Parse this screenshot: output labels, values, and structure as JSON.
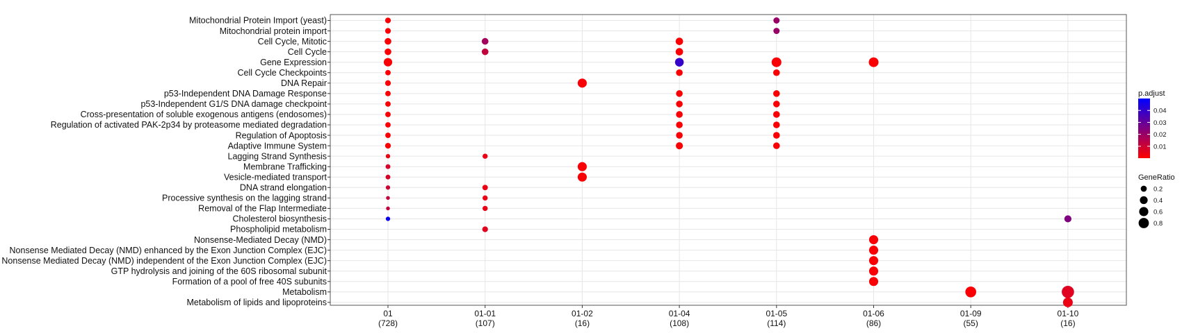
{
  "chart_data": {
    "type": "scatter",
    "x": [
      {
        "name": "01",
        "count": "(728)"
      },
      {
        "name": "01-01",
        "count": "(107)"
      },
      {
        "name": "01-02",
        "count": "(16)"
      },
      {
        "name": "01-04",
        "count": "(108)"
      },
      {
        "name": "01-05",
        "count": "(114)"
      },
      {
        "name": "01-06",
        "count": "(86)"
      },
      {
        "name": "01-09",
        "count": "(55)"
      },
      {
        "name": "01-10",
        "count": "(16)"
      }
    ],
    "y": [
      "Mitochondrial Protein Import (yeast)",
      "Mitochondrial protein import",
      "Cell Cycle, Mitotic",
      "Cell Cycle",
      "Gene Expression",
      "Cell Cycle Checkpoints",
      "DNA Repair",
      "p53-Independent DNA Damage Response",
      "p53-Independent G1/S DNA damage checkpoint",
      "Cross-presentation of soluble exogenous antigens (endosomes)",
      "Regulation of activated PAK-2p34 by proteasome mediated degradation",
      "Regulation of Apoptosis",
      "Adaptive Immune System",
      "Lagging Strand Synthesis",
      "Membrane Trafficking",
      "Vesicle-mediated transport",
      "DNA strand elongation",
      "Processive synthesis on the lagging strand",
      "Removal of the Flap Intermediate",
      "Cholesterol biosynthesis",
      "Phospholipid metabolism",
      "Nonsense-Mediated Decay (NMD)",
      "Nonsense Mediated Decay (NMD) enhanced by the Exon Junction Complex (EJC)",
      "Nonsense Mediated Decay (NMD) independent of the Exon Junction Complex (EJC)",
      "GTP hydrolysis and joining of the 60S ribosomal subunit",
      "Formation of a pool of free 40S subunits",
      "Metabolism",
      "Metabolism of lipids and lipoproteins"
    ],
    "points": [
      {
        "x": 0,
        "y": 0,
        "gene_ratio": 0.06,
        "p_adjust": 0.001
      },
      {
        "x": 0,
        "y": 1,
        "gene_ratio": 0.06,
        "p_adjust": 0.001
      },
      {
        "x": 0,
        "y": 2,
        "gene_ratio": 0.1,
        "p_adjust": 0.001
      },
      {
        "x": 0,
        "y": 3,
        "gene_ratio": 0.1,
        "p_adjust": 0.001
      },
      {
        "x": 0,
        "y": 4,
        "gene_ratio": 0.2,
        "p_adjust": 0.001
      },
      {
        "x": 0,
        "y": 5,
        "gene_ratio": 0.05,
        "p_adjust": 0.001
      },
      {
        "x": 0,
        "y": 6,
        "gene_ratio": 0.06,
        "p_adjust": 0.001
      },
      {
        "x": 0,
        "y": 7,
        "gene_ratio": 0.05,
        "p_adjust": 0.001
      },
      {
        "x": 0,
        "y": 8,
        "gene_ratio": 0.05,
        "p_adjust": 0.001
      },
      {
        "x": 0,
        "y": 9,
        "gene_ratio": 0.05,
        "p_adjust": 0.001
      },
      {
        "x": 0,
        "y": 10,
        "gene_ratio": 0.05,
        "p_adjust": 0.001
      },
      {
        "x": 0,
        "y": 11,
        "gene_ratio": 0.05,
        "p_adjust": 0.001
      },
      {
        "x": 0,
        "y": 12,
        "gene_ratio": 0.06,
        "p_adjust": 0.001
      },
      {
        "x": 0,
        "y": 13,
        "gene_ratio": 0.02,
        "p_adjust": 0.004
      },
      {
        "x": 0,
        "y": 14,
        "gene_ratio": 0.03,
        "p_adjust": 0.008
      },
      {
        "x": 0,
        "y": 15,
        "gene_ratio": 0.03,
        "p_adjust": 0.008
      },
      {
        "x": 0,
        "y": 16,
        "gene_ratio": 0.02,
        "p_adjust": 0.01
      },
      {
        "x": 0,
        "y": 17,
        "gene_ratio": 0.01,
        "p_adjust": 0.012
      },
      {
        "x": 0,
        "y": 18,
        "gene_ratio": 0.01,
        "p_adjust": 0.012
      },
      {
        "x": 0,
        "y": 19,
        "gene_ratio": 0.02,
        "p_adjust": 0.048
      },
      {
        "x": 1,
        "y": 2,
        "gene_ratio": 0.1,
        "p_adjust": 0.018
      },
      {
        "x": 1,
        "y": 3,
        "gene_ratio": 0.1,
        "p_adjust": 0.012
      },
      {
        "x": 1,
        "y": 13,
        "gene_ratio": 0.04,
        "p_adjust": 0.004
      },
      {
        "x": 1,
        "y": 16,
        "gene_ratio": 0.05,
        "p_adjust": 0.004
      },
      {
        "x": 1,
        "y": 17,
        "gene_ratio": 0.04,
        "p_adjust": 0.004
      },
      {
        "x": 1,
        "y": 18,
        "gene_ratio": 0.04,
        "p_adjust": 0.004
      },
      {
        "x": 1,
        "y": 20,
        "gene_ratio": 0.06,
        "p_adjust": 0.006
      },
      {
        "x": 2,
        "y": 6,
        "gene_ratio": 0.25,
        "p_adjust": 0.001
      },
      {
        "x": 2,
        "y": 14,
        "gene_ratio": 0.25,
        "p_adjust": 0.001
      },
      {
        "x": 2,
        "y": 15,
        "gene_ratio": 0.25,
        "p_adjust": 0.001
      },
      {
        "x": 3,
        "y": 2,
        "gene_ratio": 0.14,
        "p_adjust": 0.001
      },
      {
        "x": 3,
        "y": 3,
        "gene_ratio": 0.14,
        "p_adjust": 0.001
      },
      {
        "x": 3,
        "y": 4,
        "gene_ratio": 0.22,
        "p_adjust": 0.04
      },
      {
        "x": 3,
        "y": 5,
        "gene_ratio": 0.1,
        "p_adjust": 0.001
      },
      {
        "x": 3,
        "y": 7,
        "gene_ratio": 0.1,
        "p_adjust": 0.001
      },
      {
        "x": 3,
        "y": 8,
        "gene_ratio": 0.1,
        "p_adjust": 0.001
      },
      {
        "x": 3,
        "y": 9,
        "gene_ratio": 0.1,
        "p_adjust": 0.001
      },
      {
        "x": 3,
        "y": 10,
        "gene_ratio": 0.1,
        "p_adjust": 0.001
      },
      {
        "x": 3,
        "y": 11,
        "gene_ratio": 0.1,
        "p_adjust": 0.001
      },
      {
        "x": 3,
        "y": 12,
        "gene_ratio": 0.12,
        "p_adjust": 0.001
      },
      {
        "x": 4,
        "y": 0,
        "gene_ratio": 0.08,
        "p_adjust": 0.02
      },
      {
        "x": 4,
        "y": 1,
        "gene_ratio": 0.08,
        "p_adjust": 0.02
      },
      {
        "x": 4,
        "y": 4,
        "gene_ratio": 0.3,
        "p_adjust": 0.001
      },
      {
        "x": 4,
        "y": 5,
        "gene_ratio": 0.1,
        "p_adjust": 0.001
      },
      {
        "x": 4,
        "y": 7,
        "gene_ratio": 0.1,
        "p_adjust": 0.001
      },
      {
        "x": 4,
        "y": 8,
        "gene_ratio": 0.1,
        "p_adjust": 0.001
      },
      {
        "x": 4,
        "y": 9,
        "gene_ratio": 0.1,
        "p_adjust": 0.001
      },
      {
        "x": 4,
        "y": 10,
        "gene_ratio": 0.1,
        "p_adjust": 0.001
      },
      {
        "x": 4,
        "y": 11,
        "gene_ratio": 0.1,
        "p_adjust": 0.001
      },
      {
        "x": 4,
        "y": 12,
        "gene_ratio": 0.1,
        "p_adjust": 0.001
      },
      {
        "x": 5,
        "y": 4,
        "gene_ratio": 0.3,
        "p_adjust": 0.001
      },
      {
        "x": 5,
        "y": 21,
        "gene_ratio": 0.25,
        "p_adjust": 0.001
      },
      {
        "x": 5,
        "y": 22,
        "gene_ratio": 0.25,
        "p_adjust": 0.001
      },
      {
        "x": 5,
        "y": 23,
        "gene_ratio": 0.25,
        "p_adjust": 0.001
      },
      {
        "x": 5,
        "y": 24,
        "gene_ratio": 0.25,
        "p_adjust": 0.001
      },
      {
        "x": 5,
        "y": 25,
        "gene_ratio": 0.25,
        "p_adjust": 0.001
      },
      {
        "x": 6,
        "y": 26,
        "gene_ratio": 0.4,
        "p_adjust": 0.001
      },
      {
        "x": 7,
        "y": 19,
        "gene_ratio": 0.12,
        "p_adjust": 0.025
      },
      {
        "x": 7,
        "y": 26,
        "gene_ratio": 0.55,
        "p_adjust": 0.006
      },
      {
        "x": 7,
        "y": 27,
        "gene_ratio": 0.3,
        "p_adjust": 0.004
      }
    ],
    "legend": {
      "color_title": "p.adjust",
      "color_ticks": [
        0.04,
        0.03,
        0.02,
        0.01
      ],
      "color_tick_labels": [
        "0.04",
        "0.03",
        "0.02",
        "0.01"
      ],
      "color_range": [
        0.0,
        0.05
      ],
      "color_low": "#ff0000",
      "color_high": "#0000ff",
      "size_title": "GeneRatio",
      "size_values": [
        0.2,
        0.4,
        0.6,
        0.8
      ],
      "size_labels": [
        "0.2",
        "0.4",
        "0.6",
        "0.8"
      ],
      "placement": "right"
    },
    "grid": true,
    "title": "",
    "xlabel": "",
    "ylabel": ""
  }
}
